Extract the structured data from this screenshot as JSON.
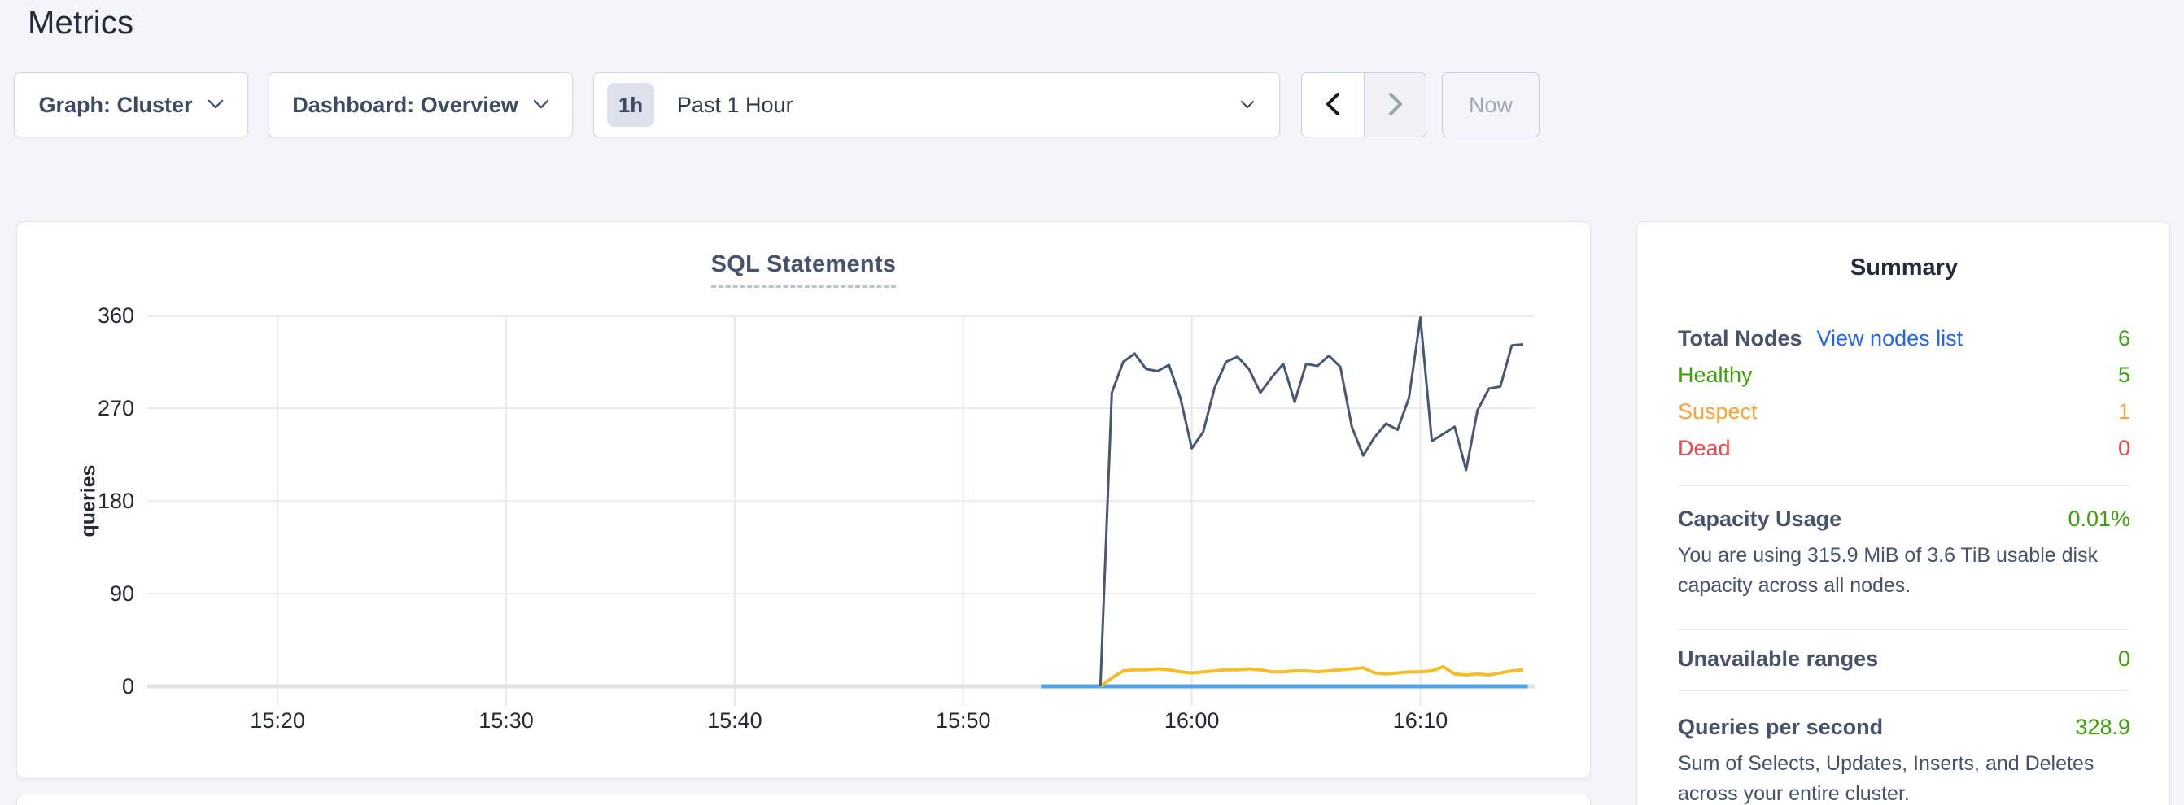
{
  "page": {
    "title": "Metrics"
  },
  "toolbar": {
    "graph_dropdown": "Graph: Cluster",
    "dashboard_dropdown": "Dashboard: Overview",
    "time_badge": "1h",
    "time_label": "Past 1 Hour",
    "now_label": "Now",
    "icons": [
      "chevron-down-icon",
      "chevron-left-icon",
      "chevron-right-icon"
    ]
  },
  "chart": {
    "title": "SQL Statements",
    "ylabel": "queries"
  },
  "chart_data": {
    "type": "line",
    "title": "SQL Statements",
    "xlabel": "",
    "ylabel": "queries",
    "grid": true,
    "legend_position": "none",
    "ylim": [
      0,
      360
    ],
    "y_ticks": [
      {
        "v": 360,
        "label": "360"
      },
      {
        "v": 270,
        "label": "270"
      },
      {
        "v": 180,
        "label": "180"
      },
      {
        "v": 90,
        "label": "90"
      },
      {
        "v": 0,
        "label": "0"
      }
    ],
    "x_range_minutes_after_1500": [
      14.3,
      75.0
    ],
    "x_ticks": [
      {
        "m": 20,
        "label": "15:20"
      },
      {
        "m": 30,
        "label": "15:30"
      },
      {
        "m": 40,
        "label": "15:40"
      },
      {
        "m": 50,
        "label": "15:50"
      },
      {
        "m": 60,
        "label": "16:00"
      },
      {
        "m": 70,
        "label": "16:10"
      }
    ],
    "series": [
      {
        "name": "light-blue-flat-line",
        "color": "#55a3e2",
        "width": 5,
        "start_min": 53.4,
        "step_min": 21.3,
        "values": [
          0,
          0
        ]
      },
      {
        "name": "yellow-line",
        "color": "#f2be2c",
        "width": 4,
        "start_min": 56.0,
        "step_min": 0.5,
        "values": [
          0,
          8,
          15,
          16,
          16,
          17,
          16,
          14,
          13,
          14,
          15,
          16,
          16,
          17,
          16,
          14,
          14,
          15,
          15,
          14,
          15,
          16,
          17,
          18,
          13,
          12,
          13,
          14,
          14,
          15,
          19,
          12,
          11,
          12,
          11,
          13,
          15,
          16
        ]
      },
      {
        "name": "dark-slate-line",
        "color": "#475872",
        "width": 3,
        "start_min": 56.0,
        "step_min": 0.5,
        "values": [
          0,
          285,
          315,
          323,
          308,
          306,
          312,
          280,
          231,
          247,
          290,
          315,
          320,
          308,
          285,
          300,
          313,
          276,
          313,
          311,
          321,
          310,
          252,
          224,
          242,
          255,
          249,
          280,
          358,
          238,
          245,
          252,
          210,
          268,
          289,
          291,
          331,
          332
        ]
      }
    ]
  },
  "summary": {
    "title": "Summary",
    "total_nodes_label": "Total Nodes",
    "view_nodes_link": "View nodes list",
    "total_nodes_value": "6",
    "healthy_label": "Healthy",
    "healthy_value": "5",
    "suspect_label": "Suspect",
    "suspect_value": "1",
    "dead_label": "Dead",
    "dead_value": "0",
    "capacity_label": "Capacity Usage",
    "capacity_value": "0.01%",
    "capacity_desc": "You are using 315.9 MiB of 3.6 TiB usable disk capacity across all nodes.",
    "unavailable_label": "Unavailable ranges",
    "unavailable_value": "0",
    "qps_label": "Queries per second",
    "qps_value": "328.9",
    "qps_desc": "Sum of Selects, Updates, Inserts, and Deletes across your entire cluster."
  },
  "colors": {
    "page_bg": "#f4f5fa",
    "healthy_green": "#3da10c",
    "suspect_orange": "#f7a43c",
    "dead_red": "#ee4547",
    "link_blue": "#2065f0",
    "line_dark_slate": "#475872",
    "line_yellow": "#f2be2c",
    "line_light_blue": "#55a3e2"
  }
}
